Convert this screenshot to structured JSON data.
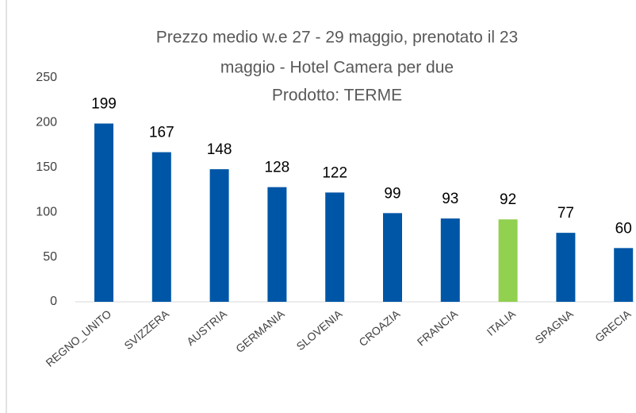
{
  "chart_data": {
    "type": "bar",
    "title": [
      "Prezzo medio w.e 27 - 29 maggio, prenotato il 23",
      "maggio  - Hotel Camera per due",
      "Prodotto: TERME"
    ],
    "categories": [
      "REGNO_UNITO",
      "SVIZZERA",
      "AUSTRIA",
      "GERMANIA",
      "SLOVENIA",
      "CROAZIA",
      "FRANCIA",
      "ITALIA",
      "SPAGNA",
      "GRECIA"
    ],
    "values": [
      199,
      167,
      148,
      128,
      122,
      99,
      93,
      92,
      77,
      60
    ],
    "colors": [
      "#0056a6",
      "#0056a6",
      "#0056a6",
      "#0056a6",
      "#0056a6",
      "#0056a6",
      "#0056a6",
      "#92d050",
      "#0056a6",
      "#0056a6"
    ],
    "ylim": [
      0,
      250
    ],
    "yticks": [
      0,
      50,
      100,
      150,
      200,
      250
    ],
    "grid": false
  }
}
